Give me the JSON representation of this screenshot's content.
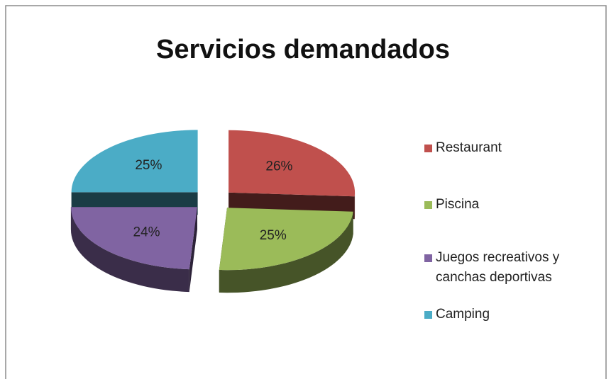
{
  "chart_data": {
    "type": "pie3d",
    "title": "Servicios demandados",
    "categories": [
      "Restaurant",
      "Piscina",
      "Juegos recreativos y canchas deportivas",
      "Camping"
    ],
    "values": [
      26,
      25,
      24,
      25
    ],
    "value_labels": [
      "26%",
      "25%",
      "24%",
      "25%"
    ],
    "colors": [
      "#c0504d",
      "#9bbb59",
      "#8064a2",
      "#4bacc6"
    ],
    "legend": "right"
  }
}
